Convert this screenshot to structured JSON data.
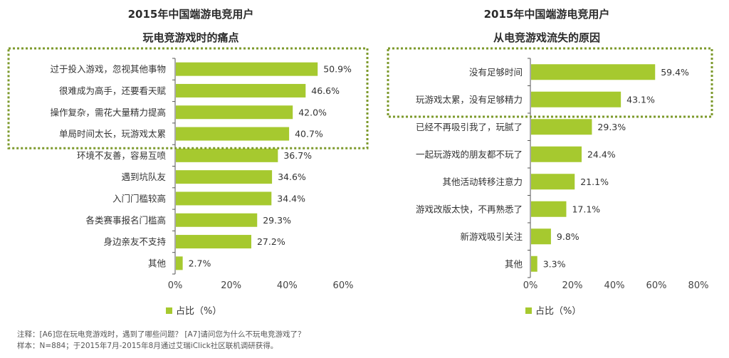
{
  "colors": {
    "bar": "#a6c92f",
    "highlight_border": "#7d9a2c",
    "axis": "#555555"
  },
  "chart_data": [
    {
      "type": "bar",
      "orientation": "horizontal",
      "title": [
        "2015年中国端游电竞用户",
        "玩电竞游戏时的痛点"
      ],
      "categories": [
        "过于投入游戏，忽视其他事物",
        "很难成为高手，还要看天赋",
        "操作复杂，需花大量精力提高",
        "单局时间太长，玩游戏太累",
        "环境不友善，容易互喷",
        "遇到坑队友",
        "入门门槛较高",
        "各类赛事报名门槛高",
        "身边亲友不支持",
        "其他"
      ],
      "values": [
        50.9,
        46.6,
        42.0,
        40.7,
        36.7,
        34.6,
        34.4,
        29.3,
        27.2,
        2.7
      ],
      "value_labels": [
        "50.9%",
        "46.6%",
        "42.0%",
        "40.7%",
        "36.7%",
        "34.6%",
        "34.4%",
        "29.3%",
        "27.2%",
        "2.7%"
      ],
      "xlim": [
        0,
        60
      ],
      "ticks": [
        0,
        20,
        40,
        60
      ],
      "tick_labels": [
        "0%",
        "20%",
        "40%",
        "60%"
      ],
      "highlighted_count": 4,
      "legend": "占比（%）",
      "grid": false
    },
    {
      "type": "bar",
      "orientation": "horizontal",
      "title": [
        "2015年中国端游电竞用户",
        "从电竞游戏流失的原因"
      ],
      "categories": [
        "没有足够时间",
        "玩游戏太累，没有足够精力",
        "已经不再吸引我了，玩腻了",
        "一起玩游戏的朋友都不玩了",
        "其他活动转移注意力",
        "游戏改版太快，不再熟悉了",
        "新游戏吸引关注",
        "其他"
      ],
      "values": [
        59.4,
        43.1,
        29.3,
        24.4,
        21.1,
        17.1,
        9.8,
        3.3
      ],
      "value_labels": [
        "59.4%",
        "43.1%",
        "29.3%",
        "24.4%",
        "21.1%",
        "17.1%",
        "9.8%",
        "3.3%"
      ],
      "xlim": [
        0,
        80
      ],
      "ticks": [
        0,
        20,
        40,
        60,
        80
      ],
      "tick_labels": [
        "0%",
        "20%",
        "40%",
        "60%",
        "80%"
      ],
      "highlighted_count": 2,
      "legend": "占比（%）",
      "grid": false
    }
  ],
  "notes": [
    "注释：[A6]您在玩电竞游戏时，遇到了哪些问题？ [A7]请问您为什么不玩电竞游戏了？",
    "样本：N=884；于2015年7月-2015年8月通过艾瑞iClick社区联机调研获得。"
  ]
}
